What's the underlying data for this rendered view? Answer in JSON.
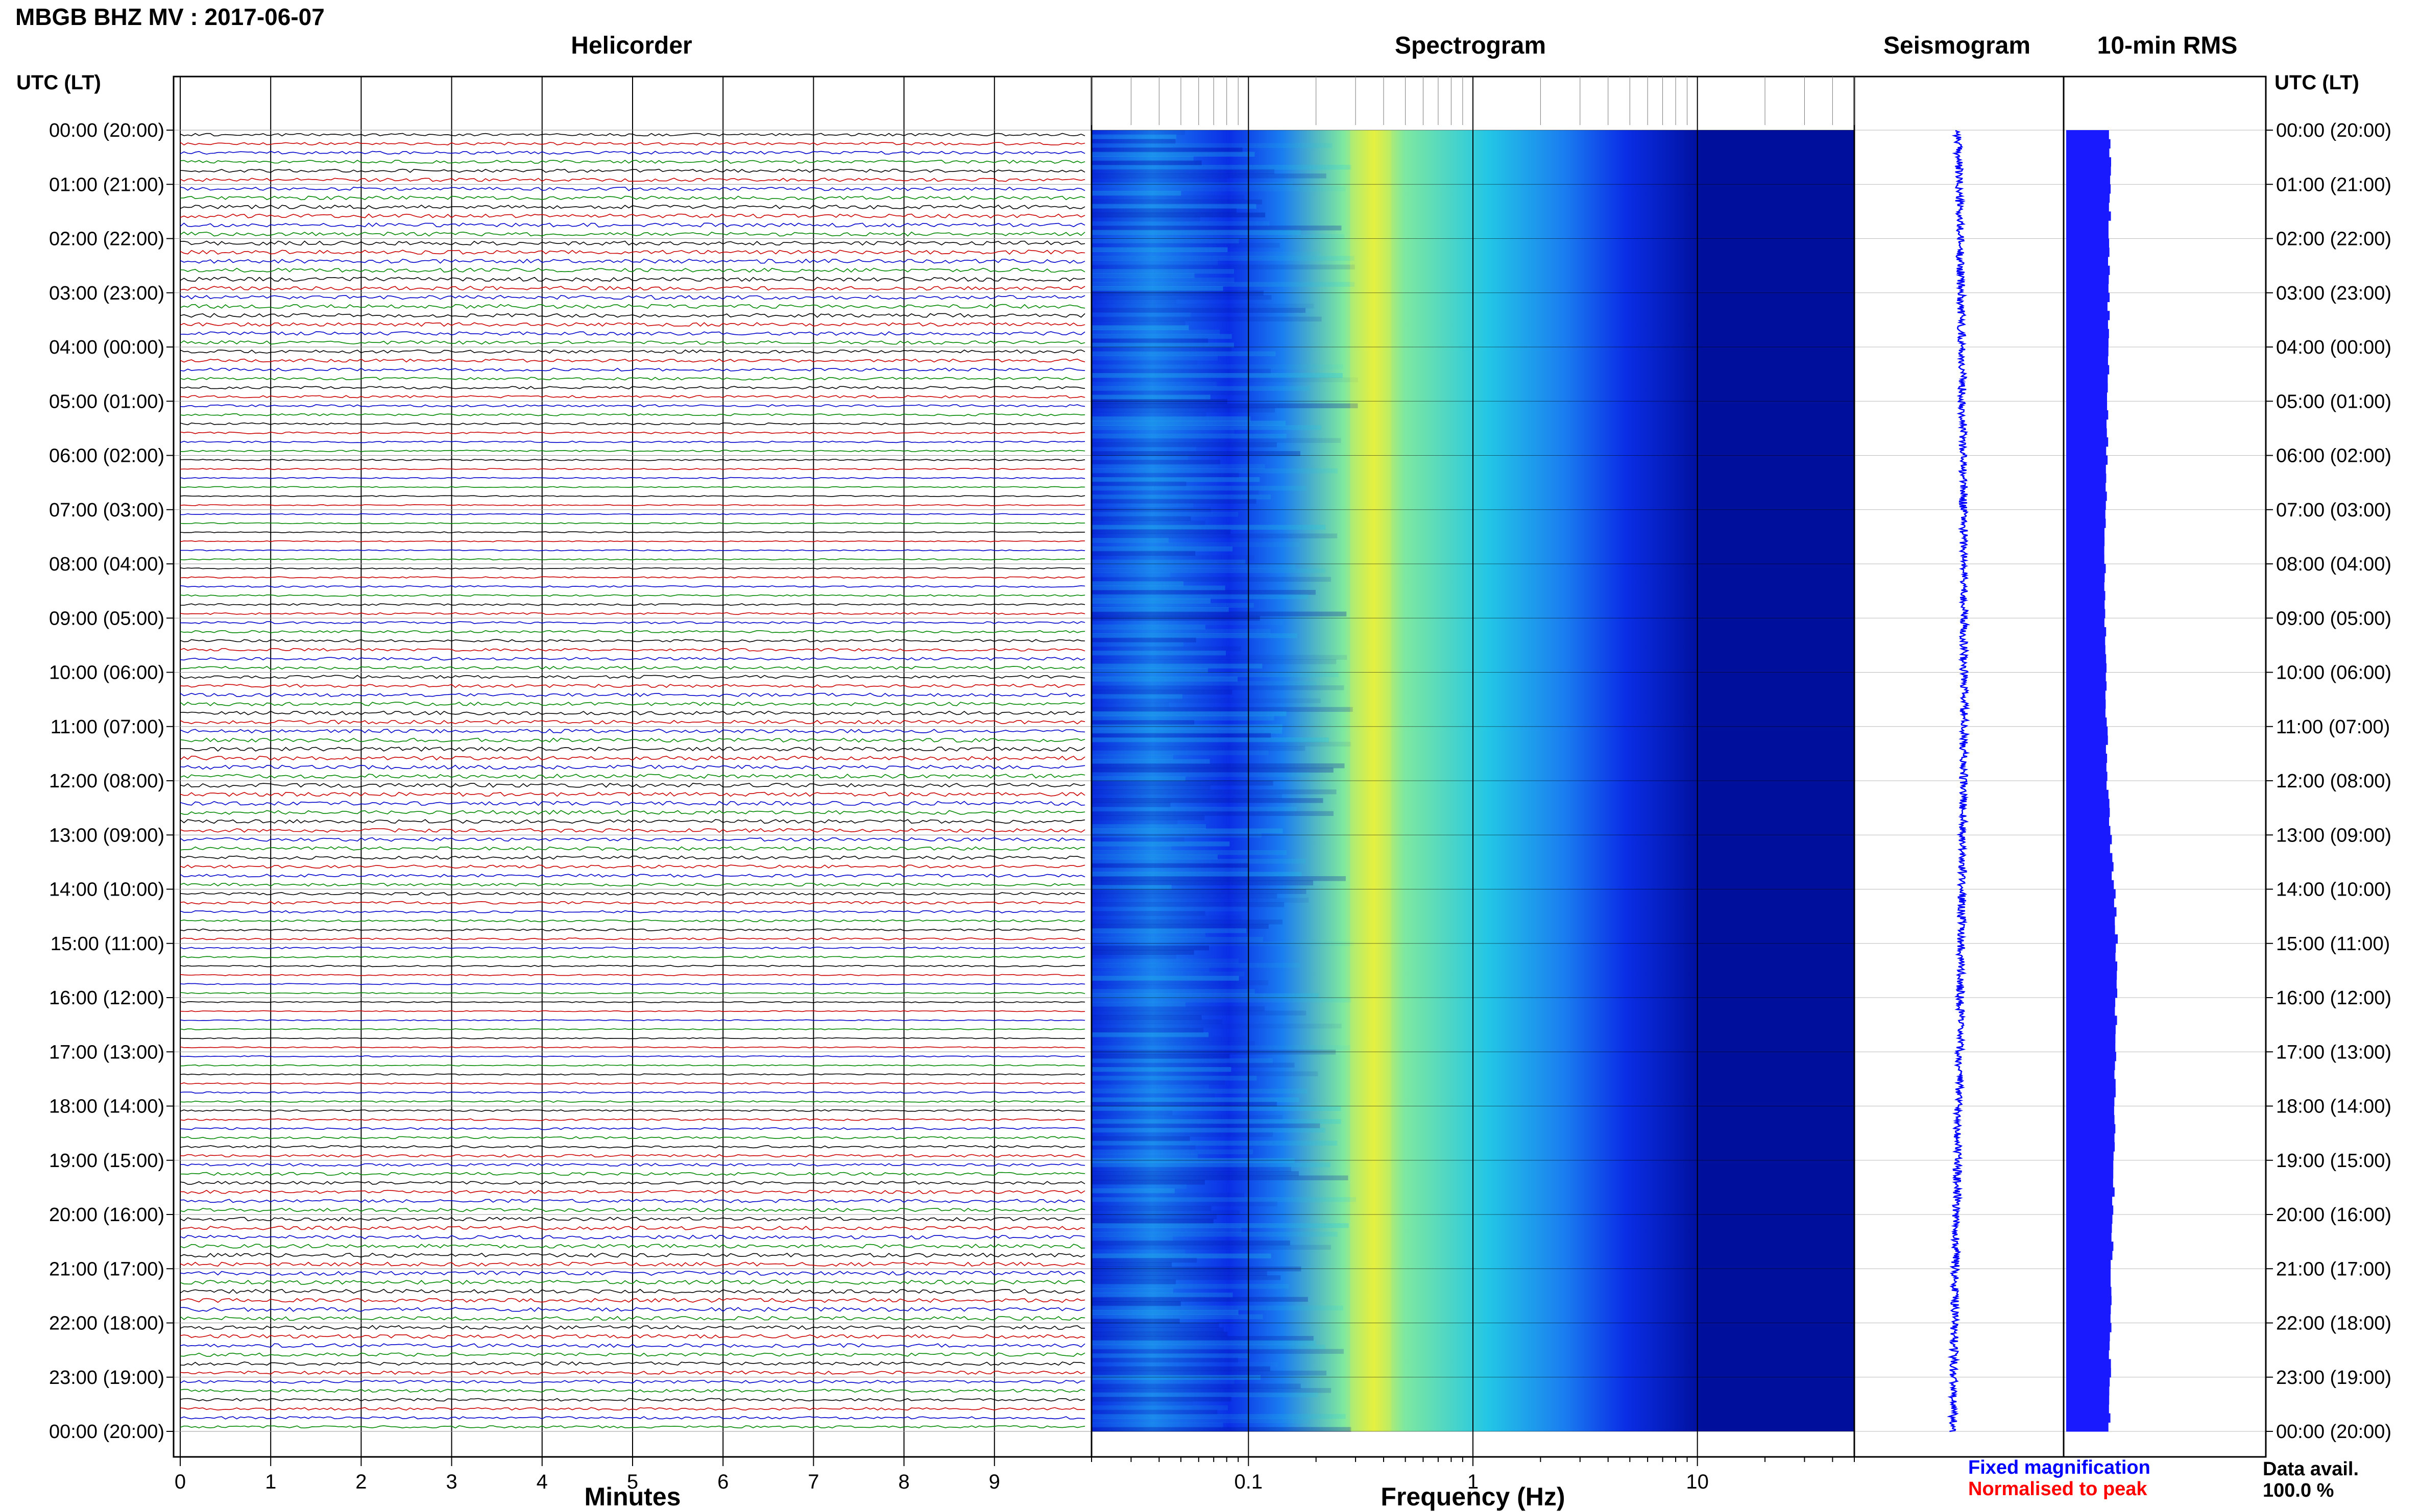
{
  "header": {
    "station_title": "MBGB BHZ MV : 2017-06-07",
    "utc_lt_label_left": "UTC (LT)",
    "utc_lt_label_right": "UTC (LT)"
  },
  "panels": {
    "helicorder_title": "Helicorder",
    "spectrogram_title": "Spectrogram",
    "seismogram_title": "Seismogram",
    "rms_title": "10-min RMS"
  },
  "legend": {
    "fixed_magnification": "Fixed magnification",
    "normalised_to_peak": "Normalised to peak",
    "data_avail_label": "Data avail.",
    "data_avail_value": "100.0 %"
  },
  "colors": {
    "fixed_magnification": "#0000ff",
    "normalised_to_peak": "#ff0000",
    "trace_colors": [
      "#000000",
      "#cc0000",
      "#0000cc",
      "#008800"
    ],
    "rms_fill": "#1a1aff"
  },
  "chart_data": [
    {
      "type": "line",
      "title": "Helicorder",
      "xlabel": "Minutes",
      "x_ticks": [
        "0",
        "1",
        "2",
        "3",
        "4",
        "5",
        "6",
        "7",
        "8",
        "9"
      ],
      "xlim": [
        0,
        10
      ],
      "trace_rows": 144,
      "trace_minutes_per_row": 10,
      "y_tick_labels": [
        "00:00 (20:00)",
        "01:00 (21:00)",
        "02:00 (22:00)",
        "03:00 (23:00)",
        "04:00 (00:00)",
        "05:00 (01:00)",
        "06:00 (02:00)",
        "07:00 (03:00)",
        "08:00 (04:00)",
        "09:00 (05:00)",
        "10:00 (06:00)",
        "11:00 (07:00)",
        "12:00 (08:00)",
        "13:00 (09:00)",
        "14:00 (10:00)",
        "15:00 (11:00)",
        "16:00 (12:00)",
        "17:00 (13:00)",
        "18:00 (14:00)",
        "19:00 (15:00)",
        "20:00 (16:00)",
        "21:00 (17:00)",
        "22:00 (18:00)",
        "23:00 (19:00)",
        "00:00 (20:00)"
      ],
      "y_tick_labels_right": [
        "00:00 (20:00)",
        "01:00 (21:00)",
        "02:00 (22:00)",
        "03:00 (23:00)",
        "04:00 (00:00)",
        "05:00 (01:00)",
        "06:00 (02:00)",
        "07:00 (03:00)",
        "08:00 (04:00)",
        "09:00 (05:00)",
        "10:00 (06:00)",
        "11:00 (07:00)",
        "12:00 (08:00)",
        "13:00 (09:00)",
        "14:00 (10:00)",
        "15:00 (11:00)",
        "16:00 (12:00)",
        "17:00 (13:00)",
        "18:00 (14:00)",
        "19:00 (15:00)",
        "20:00 (16:00)",
        "21:00 (17:00)",
        "22:00 (18:00)",
        "23:00 (19:00)",
        "00:00 (20:00)"
      ],
      "grid": true
    },
    {
      "type": "heatmap",
      "title": "Spectrogram",
      "xlabel": "Frequency (Hz)",
      "x_scale": "log",
      "xlim": [
        0.02,
        50
      ],
      "x_ticks": [
        {
          "value": 0.1,
          "label": "0.1"
        },
        {
          "value": 1,
          "label": "1"
        },
        {
          "value": 10,
          "label": "10"
        }
      ],
      "y_range_hours": [
        0,
        24
      ],
      "peak_frequency_hz": 0.35,
      "colormap": [
        "#00109c",
        "#0a2ee6",
        "#1a7df0",
        "#23c6e6",
        "#7ee8a0",
        "#e6f040"
      ]
    },
    {
      "type": "line",
      "title": "Seismogram",
      "y_range_hours": [
        0,
        24
      ],
      "color": "#0000ff"
    },
    {
      "type": "bar",
      "title": "10-min RMS",
      "y_range_hours": [
        0,
        24
      ],
      "color": "#1a1aff",
      "values_by_hour": [
        0.86,
        0.88,
        0.85,
        0.84,
        0.83,
        0.82,
        0.8,
        0.78,
        0.77,
        0.78,
        0.79,
        0.8,
        0.82,
        0.88,
        0.95,
        1.0,
        0.99,
        0.98,
        0.97,
        0.95,
        0.92,
        0.9,
        0.88,
        0.86,
        0.85
      ]
    }
  ]
}
